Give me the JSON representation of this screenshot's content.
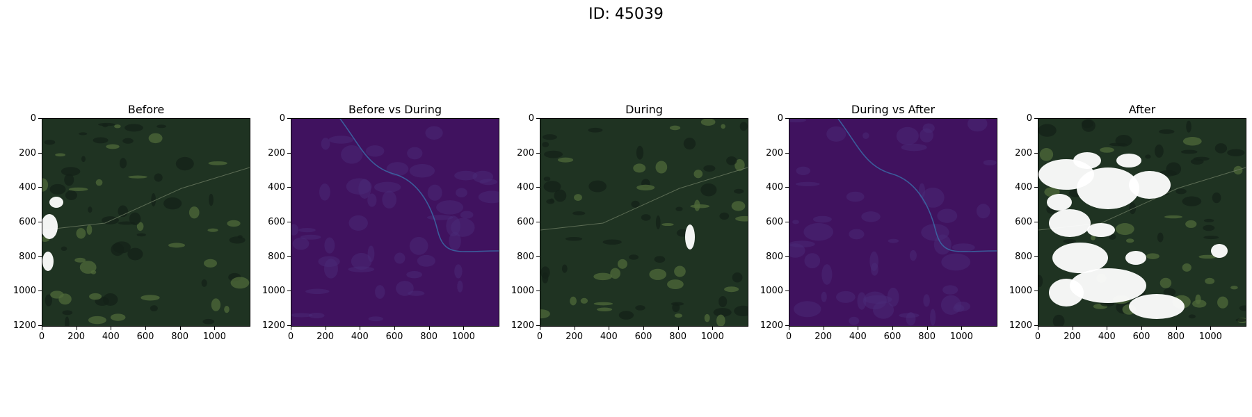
{
  "figure": {
    "suptitle": "ID: 45039"
  },
  "axes": {
    "y_ticks": [
      "0",
      "200",
      "400",
      "600",
      "800",
      "1000",
      "1200"
    ],
    "x_ticks": [
      "0",
      "200",
      "400",
      "600",
      "800",
      "1000"
    ]
  },
  "panels": [
    {
      "title": "Before",
      "kind": "rgb",
      "clouds": "few"
    },
    {
      "title": "Before vs During",
      "kind": "diff"
    },
    {
      "title": "During",
      "kind": "rgb",
      "clouds": "minimal"
    },
    {
      "title": "During vs After",
      "kind": "diff"
    },
    {
      "title": "After",
      "kind": "rgb",
      "clouds": "many"
    }
  ],
  "colors": {
    "forest": "#1f3322",
    "forest_dark": "#142218",
    "field": "#4f6a3a",
    "cloud": "#ffffff",
    "diff_bg": "#40125f",
    "diff_line": "#3b6aa6"
  }
}
